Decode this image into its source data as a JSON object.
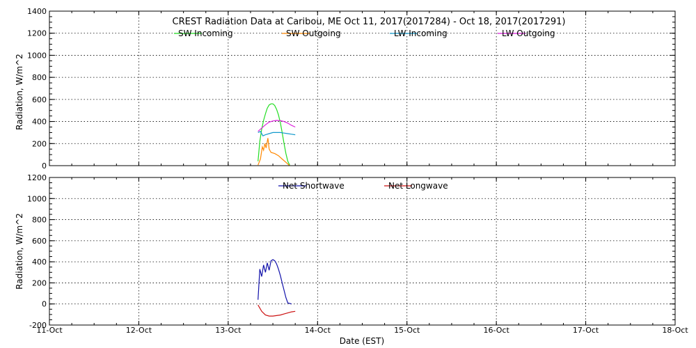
{
  "chart_data": [
    {
      "type": "line",
      "title": "CREST Radiation Data at Caribou, ME   Oct 11, 2017(2017284) - Oct 18, 2017(2017291)",
      "ylabel": "Radiation, W/m^2",
      "ylim": [
        0,
        1400
      ],
      "yticks": [
        0,
        200,
        400,
        600,
        800,
        1000,
        1200,
        1400
      ],
      "xlim": [
        "2017-10-11",
        "2017-10-18"
      ],
      "grid": true,
      "legend": "top-center",
      "series": [
        {
          "name": "SW Incoming",
          "color": "#22dd22",
          "points": [
            [
              "2017-10-13 08:00",
              40
            ],
            [
              "2017-10-13 08:30",
              220
            ],
            [
              "2017-10-13 09:00",
              330
            ],
            [
              "2017-10-13 09:30",
              410
            ],
            [
              "2017-10-13 10:00",
              470
            ],
            [
              "2017-10-13 10:30",
              520
            ],
            [
              "2017-10-13 11:00",
              550
            ],
            [
              "2017-10-13 11:30",
              560
            ],
            [
              "2017-10-13 12:00",
              560
            ],
            [
              "2017-10-13 12:30",
              545
            ],
            [
              "2017-10-13 13:00",
              510
            ],
            [
              "2017-10-13 13:30",
              460
            ],
            [
              "2017-10-13 14:00",
              390
            ],
            [
              "2017-10-13 14:30",
              300
            ],
            [
              "2017-10-13 15:00",
              200
            ],
            [
              "2017-10-13 15:30",
              110
            ],
            [
              "2017-10-13 16:00",
              40
            ],
            [
              "2017-10-13 16:30",
              5
            ]
          ]
        },
        {
          "name": "SW Outgoing",
          "color": "#ff8800",
          "points": [
            [
              "2017-10-13 08:00",
              5
            ],
            [
              "2017-10-13 08:40",
              60
            ],
            [
              "2017-10-13 09:10",
              170
            ],
            [
              "2017-10-13 09:30",
              140
            ],
            [
              "2017-10-13 09:50",
              200
            ],
            [
              "2017-10-13 10:10",
              160
            ],
            [
              "2017-10-13 10:40",
              250
            ],
            [
              "2017-10-13 11:00",
              150
            ],
            [
              "2017-10-13 11:30",
              120
            ],
            [
              "2017-10-13 12:30",
              110
            ],
            [
              "2017-10-13 13:30",
              90
            ],
            [
              "2017-10-13 14:30",
              60
            ],
            [
              "2017-10-13 15:30",
              30
            ],
            [
              "2017-10-13 16:30",
              0
            ]
          ]
        },
        {
          "name": "LW Incoming",
          "color": "#1199cc",
          "points": [
            [
              "2017-10-13 08:00",
              300
            ],
            [
              "2017-10-13 08:40",
              310
            ],
            [
              "2017-10-13 09:20",
              270
            ],
            [
              "2017-10-13 10:00",
              280
            ],
            [
              "2017-10-13 11:00",
              290
            ],
            [
              "2017-10-13 12:00",
              300
            ],
            [
              "2017-10-13 13:00",
              300
            ],
            [
              "2017-10-13 14:00",
              300
            ],
            [
              "2017-10-13 15:00",
              295
            ],
            [
              "2017-10-13 16:00",
              290
            ],
            [
              "2017-10-13 17:00",
              285
            ],
            [
              "2017-10-13 18:00",
              280
            ]
          ]
        },
        {
          "name": "LW Outgoing",
          "color": "#dd22dd",
          "points": [
            [
              "2017-10-13 08:00",
              310
            ],
            [
              "2017-10-13 09:00",
              340
            ],
            [
              "2017-10-13 10:00",
              370
            ],
            [
              "2017-10-13 11:00",
              395
            ],
            [
              "2017-10-13 12:00",
              405
            ],
            [
              "2017-10-13 13:00",
              410
            ],
            [
              "2017-10-13 14:00",
              408
            ],
            [
              "2017-10-13 15:00",
              400
            ],
            [
              "2017-10-13 16:00",
              385
            ],
            [
              "2017-10-13 17:00",
              365
            ],
            [
              "2017-10-13 18:00",
              350
            ]
          ]
        }
      ]
    },
    {
      "type": "line",
      "xlabel": "Date (EST)",
      "ylabel": "Radiation, W/m^2",
      "ylim": [
        -200,
        1200
      ],
      "yticks": [
        -200,
        0,
        200,
        400,
        600,
        800,
        1000,
        1200
      ],
      "xlim": [
        "2017-10-11",
        "2017-10-18"
      ],
      "x_tick_labels": [
        "11-Oct",
        "12-Oct",
        "13-Oct",
        "14-Oct",
        "15-Oct",
        "16-Oct",
        "17-Oct",
        "18-Oct"
      ],
      "grid": true,
      "legend": "top-center",
      "series": [
        {
          "name": "Net Shortwave",
          "color": "#1111aa",
          "points": [
            [
              "2017-10-13 08:00",
              40
            ],
            [
              "2017-10-13 08:30",
              330
            ],
            [
              "2017-10-13 09:00",
              260
            ],
            [
              "2017-10-13 09:30",
              370
            ],
            [
              "2017-10-13 10:00",
              300
            ],
            [
              "2017-10-13 10:30",
              390
            ],
            [
              "2017-10-13 11:00",
              320
            ],
            [
              "2017-10-13 11:30",
              410
            ],
            [
              "2017-10-13 12:00",
              420
            ],
            [
              "2017-10-13 12:30",
              410
            ],
            [
              "2017-10-13 13:00",
              380
            ],
            [
              "2017-10-13 13:30",
              330
            ],
            [
              "2017-10-13 14:00",
              270
            ],
            [
              "2017-10-13 14:30",
              200
            ],
            [
              "2017-10-13 15:00",
              130
            ],
            [
              "2017-10-13 15:30",
              60
            ],
            [
              "2017-10-13 16:00",
              10
            ],
            [
              "2017-10-13 17:00",
              0
            ]
          ]
        },
        {
          "name": "Net Longwave",
          "color": "#cc1111",
          "points": [
            [
              "2017-10-13 08:00",
              -10
            ],
            [
              "2017-10-13 09:00",
              -70
            ],
            [
              "2017-10-13 10:00",
              -105
            ],
            [
              "2017-10-13 11:00",
              -115
            ],
            [
              "2017-10-13 12:00",
              -115
            ],
            [
              "2017-10-13 13:00",
              -110
            ],
            [
              "2017-10-13 14:00",
              -105
            ],
            [
              "2017-10-13 15:00",
              -95
            ],
            [
              "2017-10-13 16:00",
              -85
            ],
            [
              "2017-10-13 17:00",
              -75
            ],
            [
              "2017-10-13 18:00",
              -70
            ]
          ]
        }
      ]
    }
  ]
}
